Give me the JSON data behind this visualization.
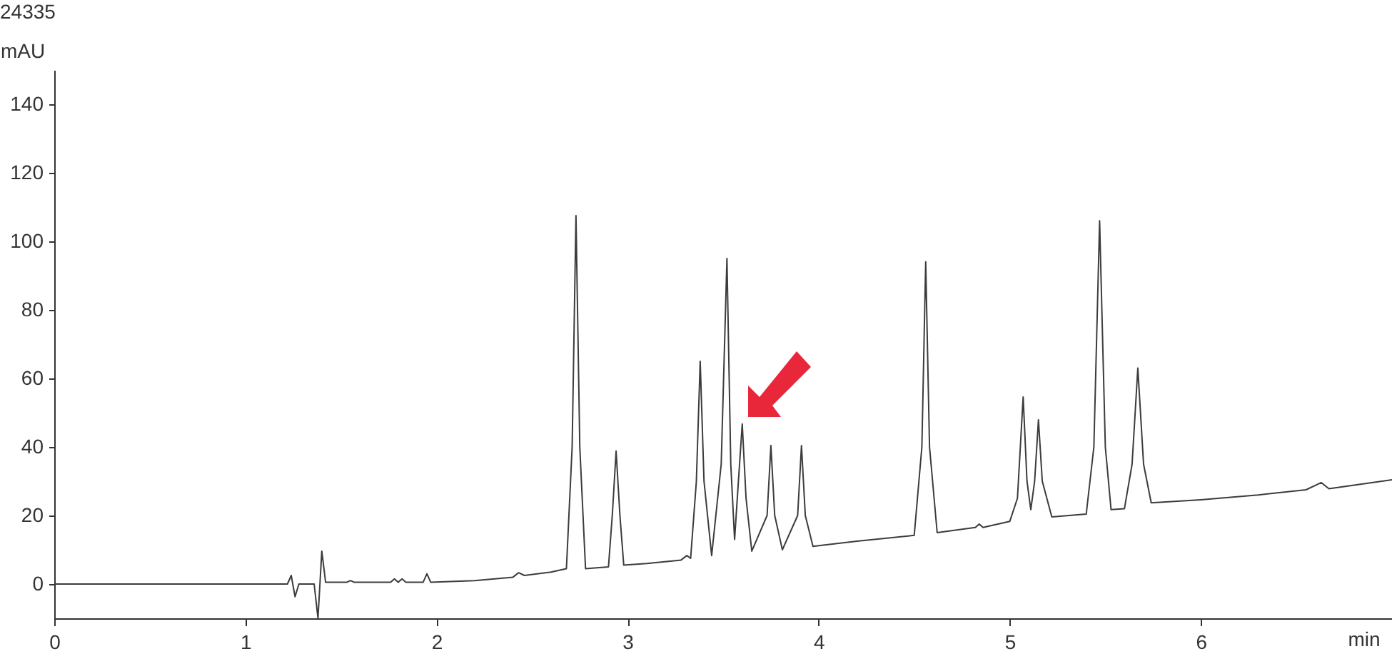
{
  "chart_data": {
    "type": "line",
    "xlabel": "min",
    "ylabel": "mAU",
    "annotations": [
      "24335"
    ],
    "xlim": [
      0,
      7
    ],
    "ylim": [
      -10,
      150
    ],
    "xticks": [
      0,
      1,
      2,
      3,
      4,
      5,
      6
    ],
    "yticks": [
      0,
      20,
      40,
      60,
      80,
      100,
      120,
      140
    ],
    "grid": false,
    "marker": "none",
    "line_style": "solid",
    "series": [
      {
        "color": "#3c3c3c",
        "x": [
          0,
          1.22,
          1.24,
          1.26,
          1.28,
          1.36,
          1.38,
          1.4,
          1.42,
          1.53,
          1.55,
          1.57,
          1.76,
          1.78,
          1.8,
          1.82,
          1.84,
          1.93,
          1.95,
          1.97,
          2.2,
          2.4,
          2.43,
          2.46,
          2.6,
          2.68,
          2.71,
          2.73,
          2.75,
          2.78,
          2.9,
          2.92,
          2.94,
          2.96,
          2.98,
          3.1,
          3.28,
          3.31,
          3.33,
          3.36,
          3.38,
          3.4,
          3.44,
          3.49,
          3.52,
          3.54,
          3.56,
          3.58,
          3.6,
          3.62,
          3.65,
          3.73,
          3.75,
          3.77,
          3.81,
          3.89,
          3.91,
          3.93,
          3.97,
          4.2,
          4.5,
          4.54,
          4.56,
          4.58,
          4.62,
          4.82,
          4.84,
          4.86,
          5.0,
          5.04,
          5.07,
          5.09,
          5.11,
          5.13,
          5.15,
          5.17,
          5.22,
          5.4,
          5.44,
          5.47,
          5.5,
          5.53,
          5.6,
          5.64,
          5.67,
          5.7,
          5.74,
          6.0,
          6.3,
          6.55,
          6.63,
          6.67,
          7.0
        ],
        "values": [
          0,
          0,
          2.5,
          -3.7,
          0,
          0,
          -10,
          9.6,
          0.5,
          0.5,
          1,
          0.5,
          0.5,
          1.5,
          0.5,
          1.5,
          0.5,
          0.5,
          3,
          0.5,
          1,
          2,
          3.3,
          2.5,
          3.5,
          4.5,
          40,
          107.5,
          40,
          4.5,
          5,
          20,
          38.8,
          20,
          5.5,
          6,
          7,
          8.3,
          7.5,
          30,
          65,
          30,
          8.3,
          35,
          95,
          35,
          13,
          30,
          46.7,
          25,
          9.6,
          20,
          40.4,
          20,
          10,
          20,
          40.4,
          20,
          11,
          12.5,
          14.2,
          40,
          94,
          40,
          15,
          16.5,
          17.5,
          16.5,
          18.3,
          25,
          54.6,
          30,
          21.7,
          30,
          47.9,
          30,
          19.6,
          20.4,
          40,
          106,
          40,
          21.7,
          22,
          35,
          63,
          35,
          23.7,
          24.6,
          26,
          27.5,
          29.6,
          27.8,
          30.4
        ]
      }
    ]
  }
}
